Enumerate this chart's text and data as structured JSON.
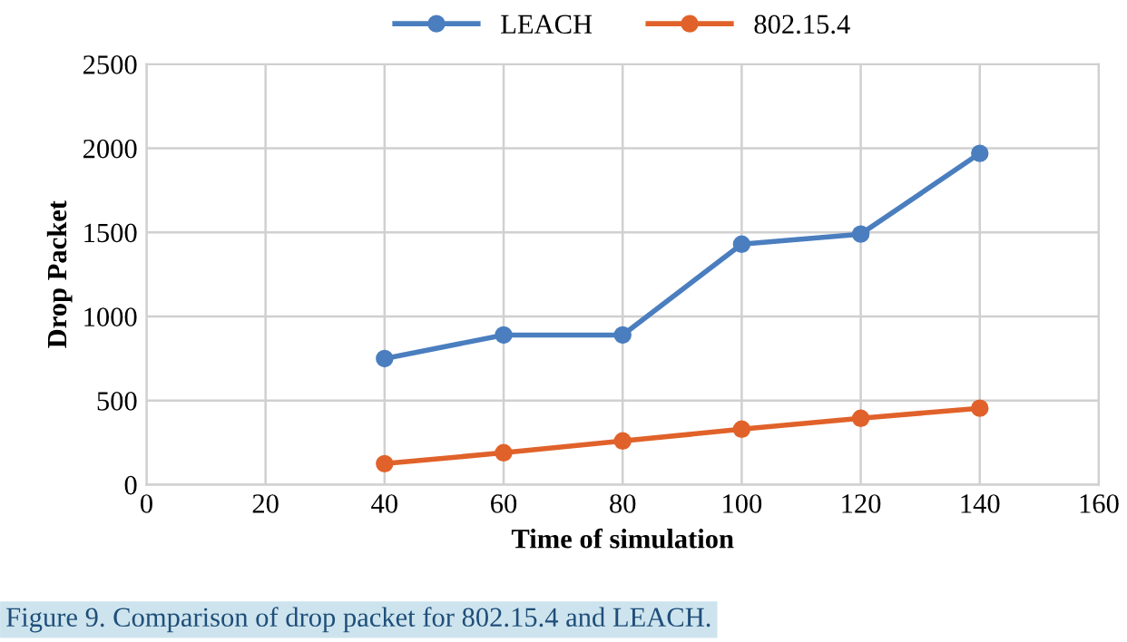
{
  "chart_data": {
    "type": "line",
    "xlabel": "Time of simulation",
    "ylabel": "Drop Packet",
    "x": [
      40,
      60,
      80,
      100,
      120,
      140
    ],
    "series": [
      {
        "name": "LEACH",
        "color": "#4a7ebf",
        "values": [
          750,
          890,
          890,
          1430,
          1490,
          1970
        ]
      },
      {
        "name": "802.15.4",
        "color": "#e0622a",
        "values": [
          125,
          190,
          260,
          330,
          395,
          455
        ]
      }
    ],
    "xlim": [
      0,
      160
    ],
    "xticks": [
      0,
      20,
      40,
      60,
      80,
      100,
      120,
      140,
      160
    ],
    "ylim": [
      0,
      2500
    ],
    "yticks": [
      0,
      500,
      1000,
      1500,
      2000,
      2500
    ],
    "grid": true,
    "legend": "top",
    "marker": "circle",
    "line_style": "solid",
    "annotations": [
      "Figure 9. Comparison of drop packet for 802.15.4 and LEACH."
    ]
  }
}
